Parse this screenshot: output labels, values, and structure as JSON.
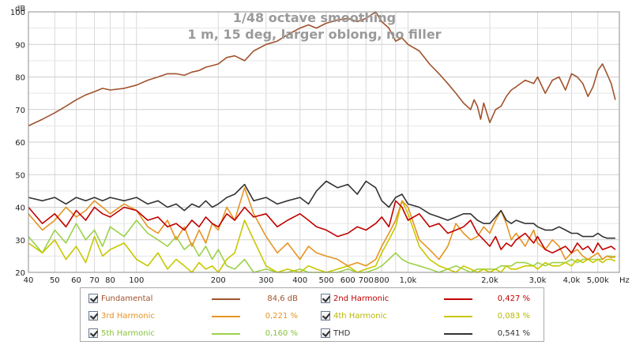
{
  "chart_data": {
    "type": "line",
    "title": "1/48 octave smoothing",
    "subtitle": "1 m, 15 deg, larger oblong, no filler",
    "ylabel": "dB",
    "xlabel": "Hz",
    "x_scale": "log",
    "xlim": [
      40,
      6000
    ],
    "ylim": [
      20,
      100
    ],
    "grid": true,
    "x_ticks": [
      {
        "v": 40,
        "label": "40"
      },
      {
        "v": 50,
        "label": "50"
      },
      {
        "v": 60,
        "label": "60"
      },
      {
        "v": 70,
        "label": "70"
      },
      {
        "v": 80,
        "label": "80"
      },
      {
        "v": 100,
        "label": "100"
      },
      {
        "v": 200,
        "label": "200"
      },
      {
        "v": 300,
        "label": "300"
      },
      {
        "v": 400,
        "label": "400"
      },
      {
        "v": 500,
        "label": "500"
      },
      {
        "v": 600,
        "label": "600"
      },
      {
        "v": 700,
        "label": "700"
      },
      {
        "v": 800,
        "label": "800"
      },
      {
        "v": 1000,
        "label": "1,0k"
      },
      {
        "v": 2000,
        "label": "2,0k"
      },
      {
        "v": 3000,
        "label": "3,0k"
      },
      {
        "v": 4000,
        "label": "4,0k"
      },
      {
        "v": 5000,
        "label": "5,00k"
      }
    ],
    "y_ticks": [
      20,
      30,
      40,
      50,
      60,
      70,
      80,
      90,
      100
    ],
    "series": [
      {
        "name": "Fundamental",
        "color": "#a0522d",
        "value": "84,6 dB",
        "x": [
          40,
          45,
          50,
          55,
          60,
          65,
          70,
          75,
          80,
          90,
          100,
          110,
          120,
          130,
          140,
          150,
          160,
          170,
          180,
          190,
          200,
          215,
          230,
          250,
          270,
          300,
          330,
          360,
          400,
          430,
          460,
          500,
          550,
          600,
          650,
          700,
          760,
          800,
          850,
          900,
          950,
          1000,
          1100,
          1200,
          1300,
          1400,
          1500,
          1600,
          1700,
          1750,
          1800,
          1850,
          1900,
          2000,
          2100,
          2200,
          2300,
          2400,
          2500,
          2700,
          2900,
          3000,
          3200,
          3400,
          3600,
          3800,
          4000,
          4200,
          4400,
          4600,
          4800,
          5000,
          5200,
          5400,
          5600,
          5800
        ],
        "y": [
          65,
          67,
          69,
          71,
          73,
          74.5,
          75.5,
          76.5,
          76,
          76.5,
          77.5,
          79,
          80,
          81,
          81,
          80.5,
          81.5,
          82,
          83,
          83.5,
          84,
          86,
          86.5,
          85,
          88,
          90,
          91,
          93,
          95,
          96,
          95,
          96.5,
          97.5,
          98,
          97,
          98,
          100,
          97,
          95,
          91,
          92,
          90,
          88,
          84,
          81,
          78,
          75,
          72,
          70,
          73,
          71,
          67,
          72,
          66,
          70,
          71,
          74,
          76,
          77,
          79,
          78,
          80,
          75,
          79,
          80,
          76,
          81,
          80,
          78,
          74,
          77,
          82,
          84,
          81,
          78,
          73
        ]
      },
      {
        "name": "2nd Harmonic",
        "color": "#c00000",
        "value": "0,427 %",
        "x": [
          40,
          45,
          50,
          55,
          60,
          65,
          70,
          75,
          80,
          90,
          100,
          110,
          120,
          130,
          140,
          150,
          160,
          170,
          180,
          190,
          200,
          215,
          230,
          250,
          270,
          300,
          330,
          360,
          400,
          430,
          460,
          500,
          550,
          600,
          650,
          700,
          760,
          800,
          850,
          900,
          950,
          1000,
          1100,
          1200,
          1300,
          1400,
          1500,
          1600,
          1700,
          1800,
          1900,
          2000,
          2100,
          2200,
          2300,
          2400,
          2500,
          2700,
          2900,
          3000,
          3200,
          3400,
          3600,
          3800,
          4000,
          4200,
          4400,
          4600,
          4800,
          5000,
          5200,
          5400,
          5600,
          5800
        ],
        "y": [
          40,
          35,
          38,
          34,
          39,
          36,
          40,
          38,
          37,
          40,
          39,
          36,
          37,
          34,
          35,
          33,
          36,
          34,
          37,
          35,
          34,
          38,
          36,
          40,
          37,
          38,
          34,
          36,
          38,
          36,
          34,
          33,
          31,
          32,
          34,
          33,
          35,
          37,
          34,
          42,
          40,
          36,
          38,
          34,
          35,
          32,
          33,
          34,
          36,
          32,
          30,
          28,
          31,
          27,
          29,
          28,
          30,
          32,
          29,
          31,
          27,
          26,
          27,
          28,
          26,
          29,
          27,
          28,
          26,
          29,
          27,
          27.5,
          28,
          27
        ]
      },
      {
        "name": "3rd Harmonic",
        "color": "#e69422",
        "value": "0,221 %",
        "x": [
          40,
          45,
          50,
          55,
          60,
          65,
          70,
          75,
          80,
          90,
          100,
          110,
          120,
          130,
          140,
          150,
          160,
          170,
          180,
          190,
          200,
          215,
          230,
          250,
          270,
          300,
          330,
          360,
          400,
          430,
          460,
          500,
          550,
          600,
          650,
          700,
          760,
          800,
          850,
          900,
          950,
          1000,
          1100,
          1200,
          1300,
          1400,
          1500,
          1600,
          1700,
          1800,
          1900,
          2000,
          2100,
          2200,
          2300,
          2400,
          2500,
          2700,
          2900,
          3000,
          3200,
          3400,
          3600,
          3800,
          4000,
          4200,
          4400,
          4600,
          4800,
          5000,
          5200,
          5400,
          5600,
          5800
        ],
        "y": [
          38,
          33,
          36,
          40,
          37,
          39,
          42,
          40,
          38,
          41,
          39,
          34,
          32,
          36,
          30,
          34,
          28,
          33,
          29,
          35,
          33,
          40,
          36,
          46,
          38,
          31,
          26,
          29,
          24,
          28,
          26,
          25,
          24,
          22,
          23,
          22,
          24,
          28,
          32,
          36,
          42,
          40,
          30,
          27,
          24,
          28,
          35,
          32,
          30,
          31,
          34,
          32,
          36,
          39,
          35,
          30,
          32,
          28,
          33,
          29,
          27,
          30,
          28,
          24,
          26,
          27,
          25,
          24,
          25,
          26,
          24,
          25,
          24.5,
          25
        ]
      },
      {
        "name": "4th Harmonic",
        "color": "#c8c800",
        "value": "0,083 %",
        "x": [
          40,
          45,
          50,
          55,
          60,
          65,
          70,
          75,
          80,
          90,
          100,
          110,
          120,
          130,
          140,
          150,
          160,
          170,
          180,
          190,
          200,
          215,
          230,
          250,
          270,
          300,
          330,
          360,
          400,
          430,
          460,
          500,
          550,
          600,
          650,
          700,
          760,
          800,
          850,
          900,
          950,
          1000,
          1100,
          1200,
          1300,
          1400,
          1500,
          1600,
          1700,
          1800,
          1900,
          2000,
          2100,
          2200,
          2300,
          2400,
          2500,
          2700,
          2900,
          3000,
          3200,
          3400,
          3600,
          3800,
          4000,
          4200,
          4400,
          4600,
          4800,
          5000,
          5200,
          5400,
          5600,
          5800
        ],
        "y": [
          29,
          26,
          30,
          24,
          28,
          23,
          31,
          25,
          27,
          29,
          24,
          22,
          26,
          21,
          24,
          22,
          20,
          23,
          21,
          22,
          20,
          24,
          26,
          36,
          30,
          22,
          20,
          21,
          20,
          22,
          21,
          20,
          21,
          22,
          20,
          21,
          22,
          26,
          30,
          34,
          42,
          38,
          28,
          24,
          22,
          21,
          20,
          22,
          21,
          20,
          21,
          20,
          21,
          20,
          22,
          21,
          21,
          22,
          22,
          21,
          23,
          22,
          22,
          23,
          22,
          24,
          23,
          24,
          23,
          24,
          23,
          24,
          24,
          23.5
        ]
      },
      {
        "name": "5th Harmonic",
        "color": "#9bd24a",
        "value": "0,160 %",
        "x": [
          40,
          45,
          50,
          55,
          60,
          65,
          70,
          75,
          80,
          90,
          100,
          110,
          120,
          130,
          140,
          150,
          160,
          170,
          180,
          190,
          200,
          215,
          230,
          250,
          270,
          300,
          330,
          360,
          400,
          430,
          460,
          500,
          550,
          600,
          650,
          700,
          760,
          800,
          850,
          900,
          950,
          1000,
          1100,
          1200,
          1300,
          1400,
          1500,
          1600,
          1700,
          1800,
          1900,
          2000,
          2100,
          2200,
          2300,
          2400,
          2500,
          2700,
          2900,
          3000,
          3200,
          3400,
          3600,
          3800,
          4000,
          4200,
          4400,
          4600,
          4800,
          5000,
          5200,
          5400,
          5600,
          5800
        ],
        "y": [
          31,
          26,
          33,
          29,
          35,
          30,
          33,
          28,
          34,
          31,
          36,
          32,
          30,
          28,
          31,
          27,
          29,
          25,
          28,
          24,
          27,
          22,
          21,
          24,
          20,
          21,
          20,
          20,
          21,
          20,
          20,
          20,
          20,
          21,
          20,
          20,
          21,
          22,
          24,
          26,
          24,
          23,
          22,
          21,
          20,
          21,
          22,
          21,
          20,
          21,
          21,
          21,
          21,
          22,
          22,
          22,
          23,
          23,
          22,
          23,
          22,
          23,
          23,
          23,
          24,
          23,
          24,
          24,
          24,
          24,
          24,
          25,
          25,
          24.5
        ]
      },
      {
        "name": "THD",
        "color": "#333333",
        "value": "0,541 %",
        "x": [
          40,
          45,
          50,
          55,
          60,
          65,
          70,
          75,
          80,
          90,
          100,
          110,
          120,
          130,
          140,
          150,
          160,
          170,
          180,
          190,
          200,
          215,
          230,
          250,
          270,
          300,
          330,
          360,
          400,
          430,
          460,
          500,
          550,
          600,
          650,
          700,
          760,
          800,
          850,
          900,
          950,
          1000,
          1100,
          1200,
          1300,
          1400,
          1500,
          1600,
          1700,
          1800,
          1900,
          2000,
          2100,
          2200,
          2300,
          2400,
          2500,
          2700,
          2900,
          3000,
          3200,
          3400,
          3600,
          3800,
          4000,
          4200,
          4400,
          4600,
          4800,
          5000,
          5200,
          5400,
          5600,
          5800
        ],
        "y": [
          43,
          42,
          43,
          41,
          43,
          42,
          43,
          42,
          43,
          42,
          43,
          41,
          42,
          40,
          41,
          39,
          41,
          40,
          42,
          40,
          41,
          43,
          44,
          47,
          42,
          43,
          41,
          42,
          43,
          41,
          45,
          48,
          46,
          47,
          44,
          48,
          46,
          42,
          40,
          43,
          44,
          41,
          40,
          38,
          37,
          36,
          37,
          38,
          38,
          36,
          35,
          35,
          37,
          39,
          36,
          35,
          36,
          35,
          35,
          34,
          33,
          33,
          34,
          33,
          32,
          32,
          31,
          31,
          31,
          32,
          31,
          30.5,
          30.5,
          30.5
        ]
      }
    ]
  }
}
